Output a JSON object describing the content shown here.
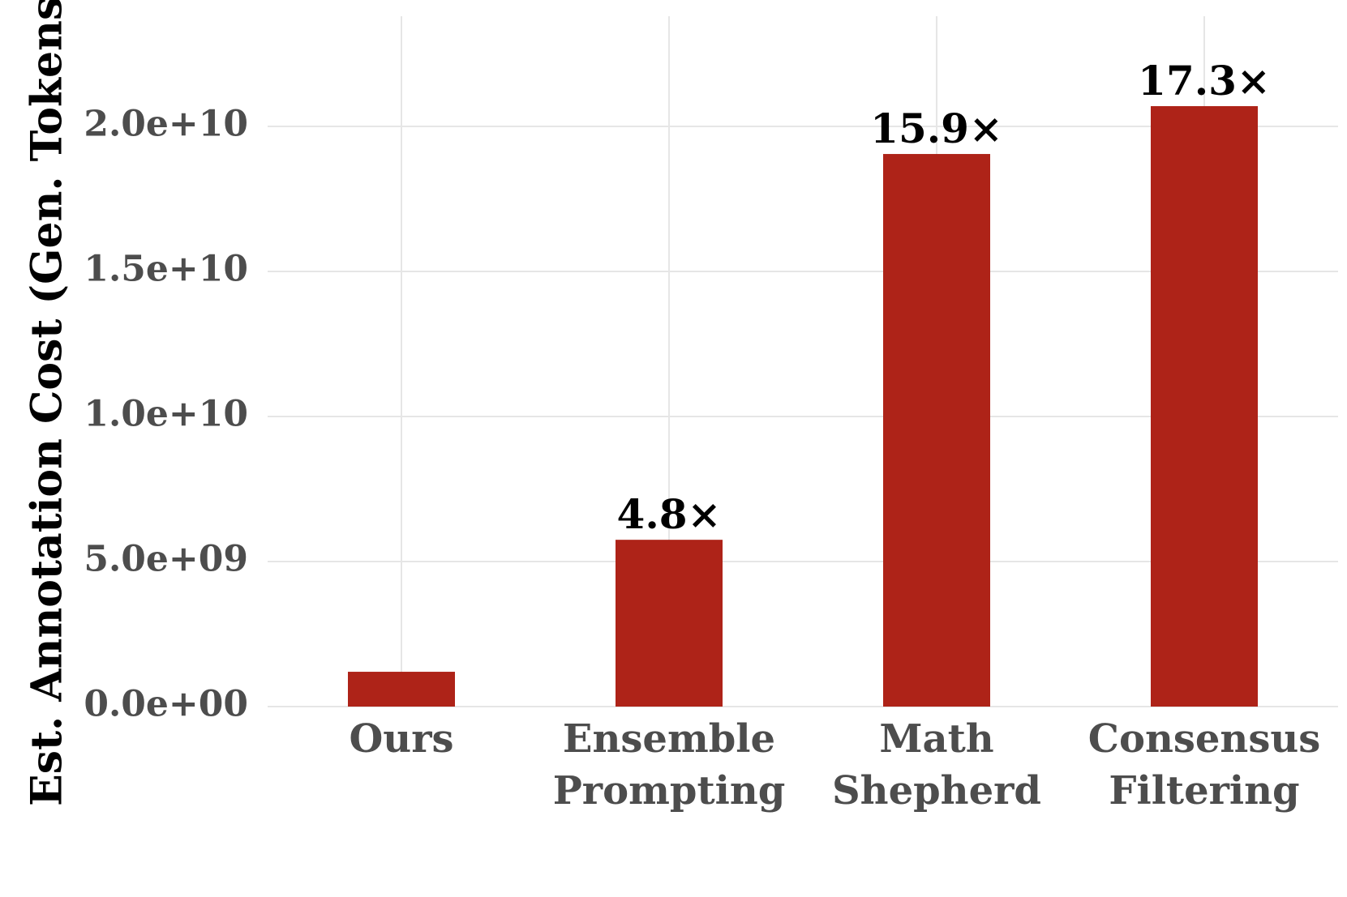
{
  "chart_data": {
    "type": "bar",
    "title": "",
    "xlabel": "",
    "ylabel": "Est. Annotation Cost (Gen. Tokens)",
    "categories": [
      [
        "Ours"
      ],
      [
        "Ensemble",
        "Prompting"
      ],
      [
        "Math",
        "Shepherd"
      ],
      [
        "Consensus",
        "Filtering"
      ]
    ],
    "values": [
      1200000000.0,
      5750000000.0,
      19050000000.0,
      20700000000.0
    ],
    "data_labels": [
      "",
      "4.8×",
      "15.9×",
      "17.3×"
    ],
    "ylim": [
      0,
      23800000000.0
    ],
    "yticks": [
      0,
      5000000000.0,
      10000000000.0,
      15000000000.0,
      20000000000.0
    ],
    "ytick_labels": [
      "0.0e+00",
      "5.0e+09",
      "1.0e+10",
      "1.5e+10",
      "2.0e+10"
    ],
    "grid": true,
    "bar_color": "#ae2318"
  }
}
